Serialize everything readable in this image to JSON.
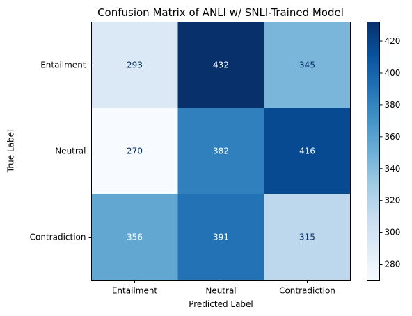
{
  "chart_data": {
    "type": "heatmap",
    "title": "Confusion Matrix of ANLI w/ SNLI-Trained Model",
    "xlabel": "Predicted Label",
    "ylabel": "True Label",
    "x_categories": [
      "Entailment",
      "Neutral",
      "Contradiction"
    ],
    "y_categories": [
      "Entailment",
      "Neutral",
      "Contradiction"
    ],
    "values": [
      [
        293,
        432,
        345
      ],
      [
        270,
        382,
        416
      ],
      [
        356,
        391,
        315
      ]
    ],
    "colormap": "Blues",
    "vmin": 270,
    "vmax": 432,
    "colorbar_ticks": [
      280,
      300,
      320,
      340,
      360,
      380,
      400,
      420
    ],
    "text_colors": {
      "light": "#ffffff",
      "dark": "#08306b"
    }
  }
}
